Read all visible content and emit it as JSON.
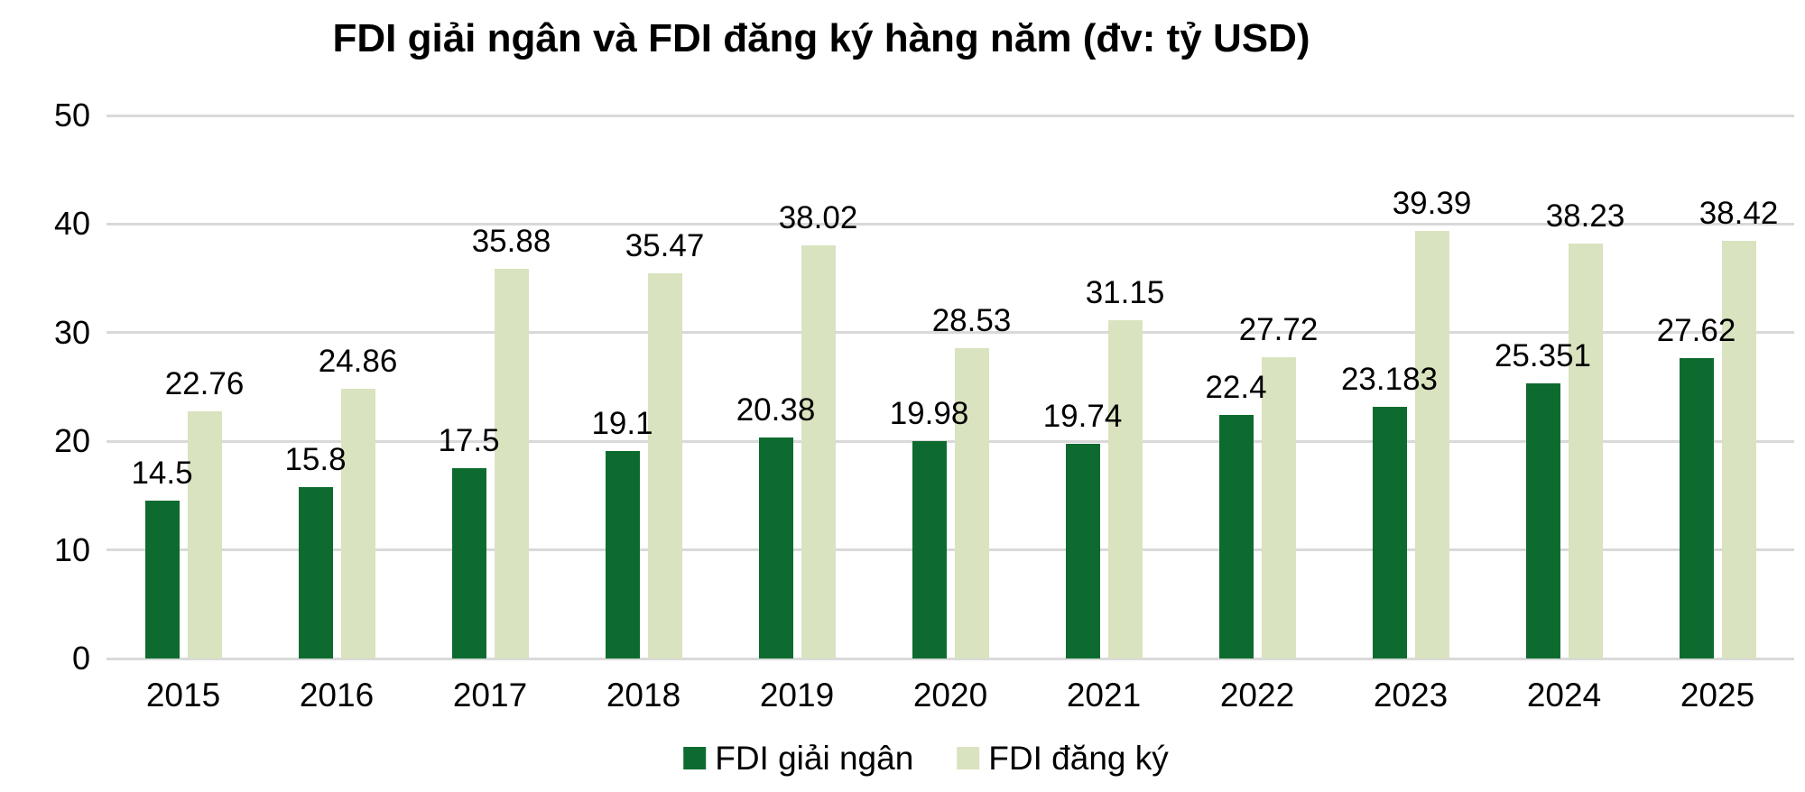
{
  "chart_data": {
    "type": "bar",
    "title": "FDI giải ngân và FDI đăng ký hàng năm (đv: tỷ USD)",
    "categories": [
      "2015",
      "2016",
      "2017",
      "2018",
      "2019",
      "2020",
      "2021",
      "2022",
      "2023",
      "2024",
      "2025"
    ],
    "series": [
      {
        "name": "FDI giải ngân",
        "color": "#0e6b30",
        "values": [
          14.5,
          15.8,
          17.5,
          19.1,
          20.38,
          19.98,
          19.74,
          22.4,
          23.183,
          25.351,
          27.62
        ],
        "value_labels": [
          "14.5",
          "15.8",
          "17.5",
          "19.1",
          "20.38",
          "19.98",
          "19.74",
          "22.4",
          "23.183",
          "25.351",
          "27.62"
        ]
      },
      {
        "name": "FDI đăng ký",
        "color": "#d9e3bf",
        "values": [
          22.76,
          24.86,
          35.88,
          35.47,
          38.02,
          28.53,
          31.15,
          27.72,
          39.39,
          38.23,
          38.42
        ],
        "value_labels": [
          "22.76",
          "24.86",
          "35.88",
          "35.47",
          "38.02",
          "28.53",
          "31.15",
          "27.72",
          "39.39",
          "38.23",
          "38.42"
        ]
      }
    ],
    "ylim": [
      0,
      50
    ],
    "yticks": [
      "0",
      "10",
      "20",
      "30",
      "40",
      "50"
    ],
    "xlabel": "",
    "ylabel": "",
    "grid": true,
    "gridline_color": "#d9d9d9",
    "text_color": "#000000",
    "background_color": "#ffffff",
    "legend_position": "bottom",
    "value_labels_shown": true
  }
}
